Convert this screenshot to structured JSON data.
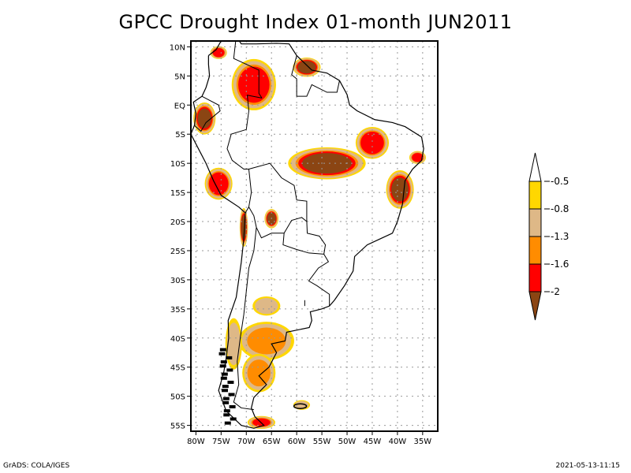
{
  "title": "GPCC Drought Index 01-month JUN2011",
  "footer": {
    "credit": "GrADS: COLA/IGES",
    "timestamp": "2021-05-13-11:15"
  },
  "map": {
    "region": "South America",
    "projection": "latlon",
    "lon_range": [
      -81,
      -32
    ],
    "lat_range": [
      -56,
      11
    ],
    "lat_ticks": [
      {
        "value": 10,
        "label": "10N"
      },
      {
        "value": 5,
        "label": "5N"
      },
      {
        "value": 0,
        "label": "EQ"
      },
      {
        "value": -5,
        "label": "5S"
      },
      {
        "value": -10,
        "label": "10S"
      },
      {
        "value": -15,
        "label": "15S"
      },
      {
        "value": -20,
        "label": "20S"
      },
      {
        "value": -25,
        "label": "25S"
      },
      {
        "value": -30,
        "label": "30S"
      },
      {
        "value": -35,
        "label": "35S"
      },
      {
        "value": -40,
        "label": "40S"
      },
      {
        "value": -45,
        "label": "45S"
      },
      {
        "value": -50,
        "label": "50S"
      },
      {
        "value": -55,
        "label": "55S"
      }
    ],
    "lon_ticks": [
      {
        "value": -80,
        "label": "80W"
      },
      {
        "value": -75,
        "label": "75W"
      },
      {
        "value": -70,
        "label": "70W"
      },
      {
        "value": -65,
        "label": "65W"
      },
      {
        "value": -60,
        "label": "60W"
      },
      {
        "value": -55,
        "label": "55W"
      },
      {
        "value": -50,
        "label": "50W"
      },
      {
        "value": -45,
        "label": "45W"
      },
      {
        "value": -40,
        "label": "40W"
      },
      {
        "value": -35,
        "label": "35W"
      }
    ],
    "grid": true
  },
  "legend": {
    "orientation": "vertical",
    "placement": "right",
    "bins": [
      {
        "label": "-0.5",
        "color": "#ffffff",
        "shape": "triangle-top"
      },
      {
        "label": "-0.8",
        "color": "#ffd700"
      },
      {
        "label": "-1.3",
        "color": "#deb887"
      },
      {
        "label": "-1.6",
        "color": "#ff8c00"
      },
      {
        "label": "-2",
        "color": "#ff0000"
      },
      {
        "label": "",
        "color": "#8b4513",
        "shape": "triangle-bottom"
      }
    ],
    "tick_labels": [
      "-0.5",
      "-0.8",
      "-1.3",
      "-1.6",
      "-2"
    ]
  },
  "chart_data": {
    "type": "heatmap",
    "title": "GPCC Drought Index 01-month JUN2011",
    "variable": "Drought index (1-month SPI-like)",
    "xlabel": "",
    "ylabel": "",
    "xlim": [
      -81,
      -32
    ],
    "ylim": [
      -56,
      11
    ],
    "levels": [
      -2,
      -1.6,
      -1.3,
      -0.8,
      -0.5
    ],
    "colors": [
      "#8b4513",
      "#ff0000",
      "#ff8c00",
      "#deb887",
      "#ffd700",
      "#ffffff"
    ],
    "anomaly_regions": [
      {
        "name": "Guyana / Suriname coast",
        "lon": -58,
        "lat": 6.5,
        "min_value": -2.2,
        "extent_deg": [
          5,
          3
        ]
      },
      {
        "name": "Central Brazil (Mato Grosso / Tocantins)",
        "lon": -54,
        "lat": -10,
        "min_value": -2.1,
        "extent_deg": [
          14,
          5
        ]
      },
      {
        "name": "Northwest Amazon (Colombia / Venezuela)",
        "lon": -68.5,
        "lat": 3.5,
        "min_value": -1.9,
        "extent_deg": [
          8,
          8
        ]
      },
      {
        "name": "Ecuador",
        "lon": -78.3,
        "lat": -2.3,
        "min_value": -2.0,
        "extent_deg": [
          4,
          5
        ]
      },
      {
        "name": "Northern Colombia coast",
        "lon": -75.5,
        "lat": 9,
        "min_value": -1.9,
        "extent_deg": [
          3,
          2
        ]
      },
      {
        "name": "Peru central",
        "lon": -75.5,
        "lat": -13.5,
        "min_value": -1.9,
        "extent_deg": [
          5,
          5
        ]
      },
      {
        "name": "Bahia east coast",
        "lon": -39.5,
        "lat": -14.5,
        "min_value": -2.0,
        "extent_deg": [
          5,
          6
        ]
      },
      {
        "name": "Maranhao / Piaui",
        "lon": -45,
        "lat": -6.5,
        "min_value": -1.9,
        "extent_deg": [
          6,
          5
        ]
      },
      {
        "name": "Pernambuco coast",
        "lon": -36,
        "lat": -9,
        "min_value": -1.8,
        "extent_deg": [
          3,
          2
        ]
      },
      {
        "name": "Bolivia altiplano",
        "lon": -70.5,
        "lat": -21,
        "min_value": -2.1,
        "extent_deg": [
          1.5,
          6
        ]
      },
      {
        "name": "Northern Argentina (Salta)",
        "lon": -65,
        "lat": -19.5,
        "min_value": -2.1,
        "extent_deg": [
          2.5,
          3
        ]
      },
      {
        "name": "Patagonia north",
        "lon": -66,
        "lat": -40.5,
        "min_value": -1.4,
        "extent_deg": [
          10,
          6
        ]
      },
      {
        "name": "Patagonia south",
        "lon": -67.5,
        "lat": -46,
        "min_value": -1.4,
        "extent_deg": [
          6,
          6
        ]
      },
      {
        "name": "Tierra del Fuego",
        "lon": -67,
        "lat": -54.5,
        "min_value": -1.6,
        "extent_deg": [
          5,
          2
        ]
      },
      {
        "name": "Falkland Islands",
        "lon": -59,
        "lat": -51.5,
        "min_value": -1.0,
        "extent_deg": [
          3,
          1.5
        ]
      },
      {
        "name": "Central Chile",
        "lon": -72.5,
        "lat": -41,
        "min_value": -1.0,
        "extent_deg": [
          3,
          8
        ]
      },
      {
        "name": "Cordoba / central Argentina",
        "lon": -66,
        "lat": -34.5,
        "min_value": -1.0,
        "extent_deg": [
          5,
          3
        ]
      }
    ]
  }
}
